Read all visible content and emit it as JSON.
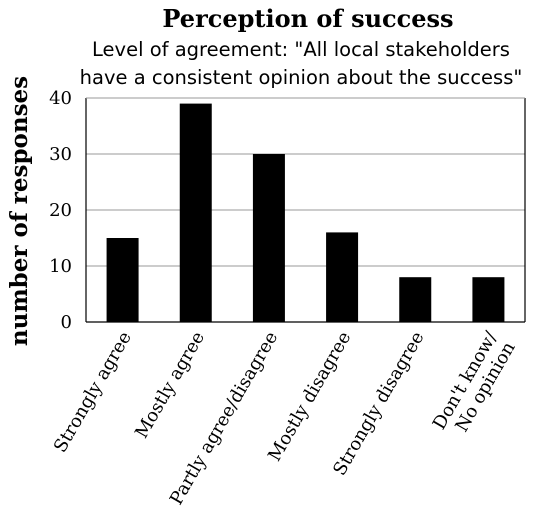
{
  "chart_data": {
    "type": "bar",
    "title": "Perception of success",
    "subtitle_lines": [
      "Level of agreement: \"All local stakeholders",
      "have a consistent opinion about the success\""
    ],
    "xlabel": "",
    "ylabel": "number of responses",
    "categories": [
      [
        "Strongly agree"
      ],
      [
        "Mostly agree"
      ],
      [
        "Partly agree/disagree"
      ],
      [
        "Mostly disagree"
      ],
      [
        "Strongly disagree"
      ],
      [
        "Don't know/",
        "No opinion"
      ]
    ],
    "values": [
      15,
      39,
      30,
      16,
      8,
      8
    ],
    "ylim": [
      0,
      40
    ],
    "yticks": [
      0,
      10,
      20,
      30,
      40
    ],
    "grid": true,
    "legend": "none",
    "colors": {
      "bar": "#000000",
      "grid": "#9a9a9a",
      "axis": "#000000",
      "background": "#ffffff"
    }
  }
}
